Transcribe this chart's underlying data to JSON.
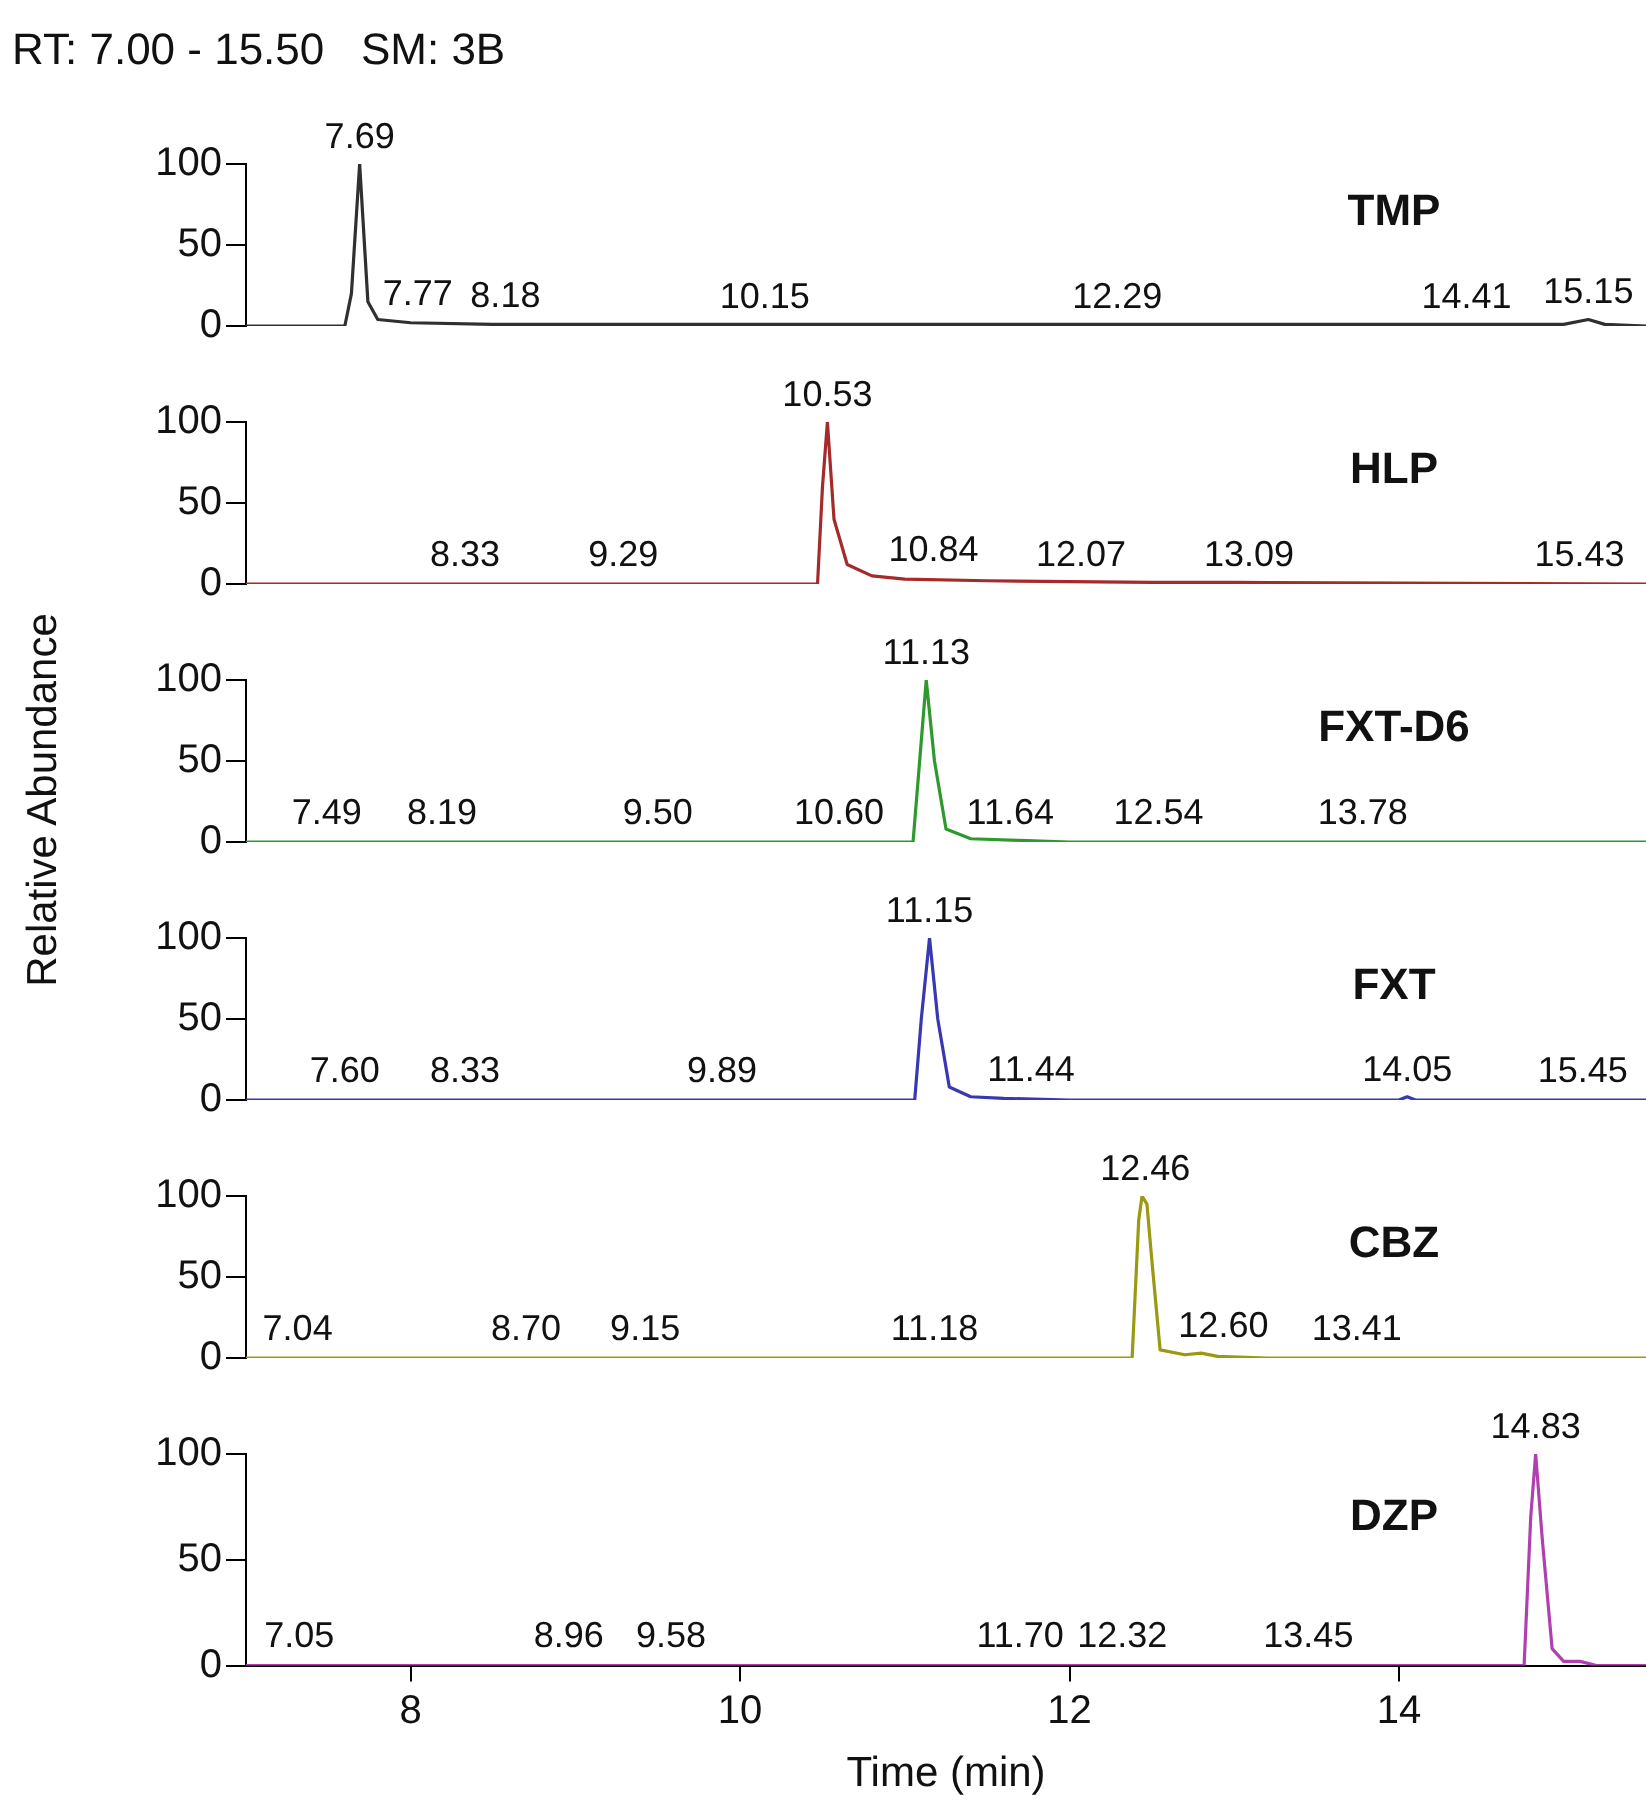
{
  "chart_data": [
    {
      "type": "line",
      "title": "RT: 7.00 - 15.50   SM: 3B",
      "xlim": [
        7,
        15.5
      ],
      "ylim": [
        0,
        100
      ],
      "yticks": [
        0,
        50,
        100
      ],
      "tick_labels": "y",
      "marker": "none",
      "legend": false,
      "series": [
        {
          "name": "TMP",
          "color": "#303030",
          "x": [
            7,
            7.6,
            7.64,
            7.69,
            7.74,
            7.8,
            8.0,
            8.5,
            9.0,
            15.0,
            15.15,
            15.25,
            15.5
          ],
          "values": [
            0,
            0,
            20,
            100,
            15,
            4,
            2,
            1,
            1,
            1,
            4,
            1,
            0
          ]
        }
      ],
      "annotations": [
        {
          "text": "7.69",
          "x": 7.69,
          "y": 100
        },
        {
          "text": "7.77",
          "x": 7.77,
          "y": 3
        },
        {
          "text": "8.18",
          "x": 8.18,
          "y": 2
        },
        {
          "text": "10.15",
          "x": 10.15,
          "y": 1
        },
        {
          "text": "12.29",
          "x": 12.29,
          "y": 1
        },
        {
          "text": "14.41",
          "x": 14.41,
          "y": 1
        },
        {
          "text": "15.15",
          "x": 15.15,
          "y": 4
        }
      ]
    },
    {
      "type": "line",
      "xlim": [
        7,
        15.5
      ],
      "ylim": [
        0,
        100
      ],
      "yticks": [
        0,
        50,
        100
      ],
      "tick_labels": "y",
      "marker": "none",
      "legend": false,
      "series": [
        {
          "name": "HLP",
          "color": "#a52a2a",
          "x": [
            7,
            10.47,
            10.5,
            10.53,
            10.57,
            10.65,
            10.8,
            11.0,
            11.5,
            12.5,
            13,
            15.5
          ],
          "values": [
            0,
            0,
            60,
            100,
            40,
            12,
            5,
            3,
            2,
            1,
            1,
            0
          ]
        }
      ],
      "annotations": [
        {
          "text": "10.53",
          "x": 10.53,
          "y": 100
        },
        {
          "text": "8.33",
          "x": 8.33,
          "y": 1
        },
        {
          "text": "9.29",
          "x": 9.29,
          "y": 1
        },
        {
          "text": "10.84",
          "x": 10.84,
          "y": 4
        },
        {
          "text": "12.07",
          "x": 12.07,
          "y": 1
        },
        {
          "text": "13.09",
          "x": 13.09,
          "y": 1
        },
        {
          "text": "15.43",
          "x": 15.43,
          "y": 1
        }
      ]
    },
    {
      "type": "line",
      "ylabel": "Relative Abundance",
      "xlim": [
        7,
        15.5
      ],
      "ylim": [
        0,
        100
      ],
      "yticks": [
        0,
        50,
        100
      ],
      "tick_labels": "y",
      "marker": "none",
      "legend": false,
      "series": [
        {
          "name": "FXT-D6",
          "color": "#2e9a2e",
          "x": [
            7,
            11.05,
            11.09,
            11.13,
            11.18,
            11.25,
            11.4,
            11.7,
            12,
            15.5
          ],
          "values": [
            0,
            0,
            50,
            100,
            50,
            8,
            2,
            1,
            0,
            0
          ]
        }
      ],
      "annotations": [
        {
          "text": "11.13",
          "x": 11.13,
          "y": 100
        },
        {
          "text": "7.49",
          "x": 7.49,
          "y": 1
        },
        {
          "text": "8.19",
          "x": 8.19,
          "y": 1
        },
        {
          "text": "9.50",
          "x": 9.5,
          "y": 1
        },
        {
          "text": "10.60",
          "x": 10.6,
          "y": 1
        },
        {
          "text": "11.64",
          "x": 11.64,
          "y": 1
        },
        {
          "text": "12.54",
          "x": 12.54,
          "y": 1
        },
        {
          "text": "13.78",
          "x": 13.78,
          "y": 1
        }
      ]
    },
    {
      "type": "line",
      "xlim": [
        7,
        15.5
      ],
      "ylim": [
        0,
        100
      ],
      "yticks": [
        0,
        50,
        100
      ],
      "tick_labels": "y",
      "marker": "none",
      "legend": false,
      "series": [
        {
          "name": "FXT",
          "color": "#3838b0",
          "x": [
            7,
            11.06,
            11.1,
            11.15,
            11.2,
            11.27,
            11.4,
            11.6,
            12,
            14.0,
            14.05,
            14.1,
            15.5
          ],
          "values": [
            0,
            0,
            50,
            100,
            50,
            8,
            2,
            1,
            0,
            0,
            2,
            0,
            0
          ]
        }
      ],
      "annotations": [
        {
          "text": "11.15",
          "x": 11.15,
          "y": 100
        },
        {
          "text": "7.60",
          "x": 7.6,
          "y": 1
        },
        {
          "text": "8.33",
          "x": 8.33,
          "y": 1
        },
        {
          "text": "9.89",
          "x": 9.89,
          "y": 1
        },
        {
          "text": "11.44",
          "x": 11.44,
          "y": 2
        },
        {
          "text": "14.05",
          "x": 14.05,
          "y": 2
        },
        {
          "text": "15.45",
          "x": 15.45,
          "y": 1
        }
      ]
    },
    {
      "type": "line",
      "xlim": [
        7,
        15.5
      ],
      "ylim": [
        0,
        100
      ],
      "yticks": [
        0,
        50,
        100
      ],
      "tick_labels": "y",
      "marker": "none",
      "legend": false,
      "series": [
        {
          "name": "CBZ",
          "color": "#9a9a12",
          "x": [
            7,
            12.38,
            12.42,
            12.44,
            12.47,
            12.5,
            12.55,
            12.7,
            12.8,
            12.9,
            13.2,
            15.5
          ],
          "values": [
            0,
            0,
            85,
            100,
            95,
            60,
            5,
            2,
            3,
            1,
            0,
            0
          ]
        }
      ],
      "annotations": [
        {
          "text": "12.46",
          "x": 12.46,
          "y": 100
        },
        {
          "text": "7.04",
          "x": 7.04,
          "y": 1
        },
        {
          "text": "8.70",
          "x": 8.7,
          "y": 1
        },
        {
          "text": "9.15",
          "x": 9.15,
          "y": 1
        },
        {
          "text": "11.18",
          "x": 11.18,
          "y": 1
        },
        {
          "text": "12.60",
          "x": 12.6,
          "y": 3
        },
        {
          "text": "13.41",
          "x": 13.41,
          "y": 1
        }
      ]
    },
    {
      "type": "line",
      "xlabel": "Time (min)",
      "xlim": [
        7,
        15.5
      ],
      "ylim": [
        0,
        100
      ],
      "xticks": [
        8,
        10,
        12,
        14
      ],
      "yticks": [
        0,
        50,
        100
      ],
      "marker": "none",
      "legend": false,
      "series": [
        {
          "name": "DZP",
          "color": "#b040b0",
          "x": [
            7,
            14.76,
            14.8,
            14.83,
            14.87,
            14.93,
            15.0,
            15.1,
            15.2,
            15.5
          ],
          "values": [
            0,
            0,
            70,
            100,
            60,
            8,
            2,
            2,
            0,
            0
          ]
        }
      ],
      "annotations": [
        {
          "text": "14.83",
          "x": 14.83,
          "y": 100
        },
        {
          "text": "7.05",
          "x": 7.05,
          "y": 1
        },
        {
          "text": "8.96",
          "x": 8.96,
          "y": 1
        },
        {
          "text": "9.58",
          "x": 9.58,
          "y": 1
        },
        {
          "text": "11.70",
          "x": 11.7,
          "y": 1
        },
        {
          "text": "12.32",
          "x": 12.32,
          "y": 1
        },
        {
          "text": "13.45",
          "x": 13.45,
          "y": 1
        }
      ]
    }
  ]
}
